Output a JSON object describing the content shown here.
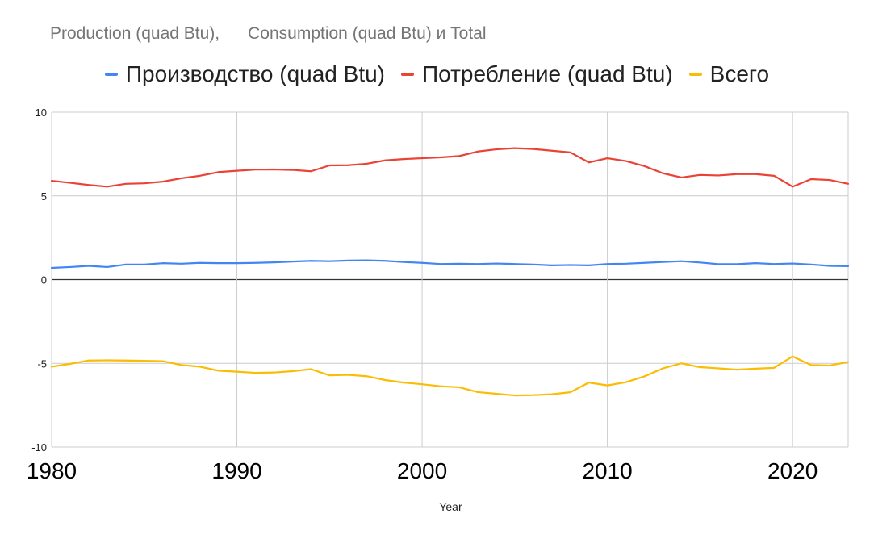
{
  "chart_data": {
    "type": "line",
    "title": "Production (quad Btu),      Consumption (quad Btu) и Total",
    "xlabel": "Year",
    "ylabel": "",
    "xlim": [
      1980,
      2023
    ],
    "ylim": [
      -10,
      10
    ],
    "x_ticks": [
      1980,
      1990,
      2000,
      2010,
      2020
    ],
    "y_ticks": [
      -10,
      -5,
      0,
      5,
      10
    ],
    "grid": true,
    "legend_position": "top",
    "x": [
      1980,
      1981,
      1982,
      1983,
      1984,
      1985,
      1986,
      1987,
      1988,
      1989,
      1990,
      1991,
      1992,
      1993,
      1994,
      1995,
      1996,
      1997,
      1998,
      1999,
      2000,
      2001,
      2002,
      2003,
      2004,
      2005,
      2006,
      2007,
      2008,
      2009,
      2010,
      2011,
      2012,
      2013,
      2014,
      2015,
      2016,
      2017,
      2018,
      2019,
      2020,
      2021,
      2022,
      2023
    ],
    "series": [
      {
        "name": "Производство (quad Btu)",
        "color": "#4285f4",
        "values": [
          0.7,
          0.75,
          0.82,
          0.75,
          0.9,
          0.9,
          0.98,
          0.95,
          1.0,
          0.98,
          0.98,
          1.0,
          1.03,
          1.08,
          1.12,
          1.1,
          1.14,
          1.15,
          1.12,
          1.05,
          1.0,
          0.93,
          0.95,
          0.93,
          0.96,
          0.93,
          0.9,
          0.85,
          0.87,
          0.85,
          0.93,
          0.95,
          1.0,
          1.05,
          1.1,
          1.02,
          0.92,
          0.92,
          0.98,
          0.93,
          0.96,
          0.9,
          0.82,
          0.8
        ]
      },
      {
        "name": "Потребление (quad Btu)",
        "color": "#ea4335",
        "values": [
          5.9,
          5.78,
          5.65,
          5.55,
          5.72,
          5.75,
          5.85,
          6.05,
          6.2,
          6.42,
          6.5,
          6.57,
          6.58,
          6.55,
          6.47,
          6.82,
          6.83,
          6.92,
          7.12,
          7.2,
          7.25,
          7.3,
          7.38,
          7.65,
          7.78,
          7.85,
          7.8,
          7.7,
          7.6,
          7.0,
          7.25,
          7.08,
          6.78,
          6.35,
          6.1,
          6.25,
          6.22,
          6.3,
          6.3,
          6.2,
          5.55,
          6.0,
          5.95,
          5.72
        ]
      },
      {
        "name": "Всего",
        "color": "#fbbc04",
        "values": [
          -5.2,
          -5.03,
          -4.83,
          -4.82,
          -4.83,
          -4.85,
          -4.87,
          -5.1,
          -5.2,
          -5.44,
          -5.5,
          -5.57,
          -5.55,
          -5.47,
          -5.35,
          -5.72,
          -5.69,
          -5.77,
          -6.0,
          -6.15,
          -6.25,
          -6.37,
          -6.43,
          -6.72,
          -6.82,
          -6.92,
          -6.9,
          -6.85,
          -6.73,
          -6.15,
          -6.32,
          -6.13,
          -5.78,
          -5.3,
          -5.0,
          -5.23,
          -5.3,
          -5.38,
          -5.32,
          -5.27,
          -4.59,
          -5.1,
          -5.13,
          -4.92
        ]
      }
    ]
  }
}
